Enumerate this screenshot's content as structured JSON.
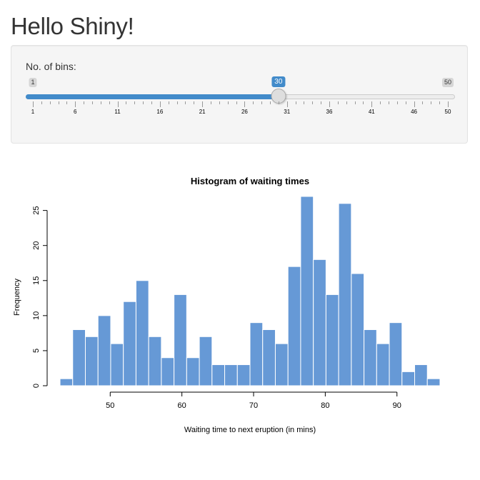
{
  "app": {
    "title": "Hello Shiny!"
  },
  "slider": {
    "label": "No. of bins:",
    "min": 1,
    "max": 50,
    "value": 30,
    "min_label": "1",
    "max_label": "50",
    "value_label": "30",
    "grid_labels": [
      "1",
      "6",
      "11",
      "16",
      "21",
      "26",
      "31",
      "36",
      "41",
      "46",
      "50"
    ],
    "accent_color": "#428bca"
  },
  "chart_data": {
    "type": "bar",
    "title": "Histogram of waiting times",
    "xlabel": "Waiting time to next eruption (in mins)",
    "ylabel": "Frequency",
    "bar_color": "#6699d6",
    "xlim": [
      42.1,
      96.9
    ],
    "ylim": [
      0,
      27
    ],
    "x_ticks": [
      50,
      60,
      70,
      80,
      90
    ],
    "y_ticks": [
      0,
      5,
      10,
      15,
      20,
      25
    ],
    "bin_start": 43,
    "bin_width": 1.7667,
    "values": [
      1,
      8,
      7,
      10,
      6,
      12,
      15,
      7,
      4,
      13,
      4,
      7,
      3,
      3,
      3,
      9,
      8,
      6,
      17,
      27,
      18,
      13,
      26,
      16,
      8,
      6,
      9,
      2,
      3,
      1
    ]
  }
}
